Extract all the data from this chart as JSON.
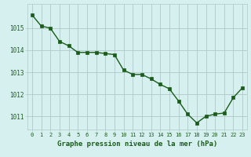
{
  "x": [
    0,
    1,
    2,
    3,
    4,
    5,
    6,
    7,
    8,
    9,
    10,
    11,
    12,
    13,
    14,
    15,
    16,
    17,
    18,
    19,
    20,
    21,
    22,
    23
  ],
  "y": [
    1015.6,
    1015.1,
    1015.0,
    1014.4,
    1014.2,
    1013.9,
    1013.9,
    1013.9,
    1013.85,
    1013.8,
    1013.1,
    1012.9,
    1012.9,
    1012.7,
    1012.45,
    1012.25,
    1011.7,
    1011.1,
    1010.7,
    1011.0,
    1011.1,
    1011.15,
    1011.85,
    1012.3
  ],
  "line_color": "#1a5c1a",
  "marker": "s",
  "marker_size": 2.5,
  "bg_color": "#d6f0f0",
  "grid_color": "#b0c8c8",
  "axis_label_color": "#1a5c1a",
  "tick_label_color": "#1a5c1a",
  "xlabel": "Graphe pression niveau de la mer (hPa)",
  "ylim_min": 1010.4,
  "ylim_max": 1016.1,
  "yticks": [
    1011,
    1012,
    1013,
    1014,
    1015
  ],
  "xlim_min": -0.5,
  "xlim_max": 23.5
}
